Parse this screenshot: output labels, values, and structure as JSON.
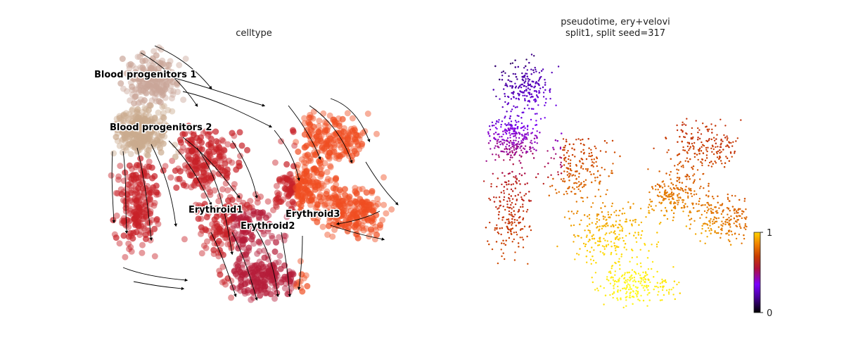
{
  "chart_data": [
    {
      "type": "scatter",
      "title": "celltype",
      "subtype": "umap-embedding-with-velocity-streamlines",
      "categories": [
        "Blood progenitors 1",
        "Blood progenitors 2",
        "Erythroid1",
        "Erythroid2",
        "Erythroid3"
      ],
      "category_colors": {
        "Blood progenitors 1": "#c9a699",
        "Blood progenitors 2": "#c9aa8e",
        "Erythroid1": "#c72228",
        "Erythroid2": "#b51d3a",
        "Erythroid3": "#ef4e22"
      },
      "labels": [
        "Blood progenitors 1",
        "Blood progenitors 2",
        "Erythroid1",
        "Erythroid2",
        "Erythroid3"
      ],
      "grid": false,
      "axes_visible": false,
      "streamline_color": "#000000"
    },
    {
      "type": "scatter",
      "title": "pseudotime, ery+velovi\nsplit1, split seed=317",
      "title_lines": [
        "pseudotime, ery+velovi",
        "split1, split seed=317"
      ],
      "colormap": "gnuplot",
      "colormap_stops": [
        "#000000",
        "#7a00ff",
        "#c41a2e",
        "#d45500",
        "#ff9a00",
        "#ffff00"
      ],
      "colorbar": {
        "min": 0,
        "max": 1,
        "ticks": [
          "0",
          "1"
        ]
      },
      "grid": false,
      "axes_visible": false
    }
  ]
}
